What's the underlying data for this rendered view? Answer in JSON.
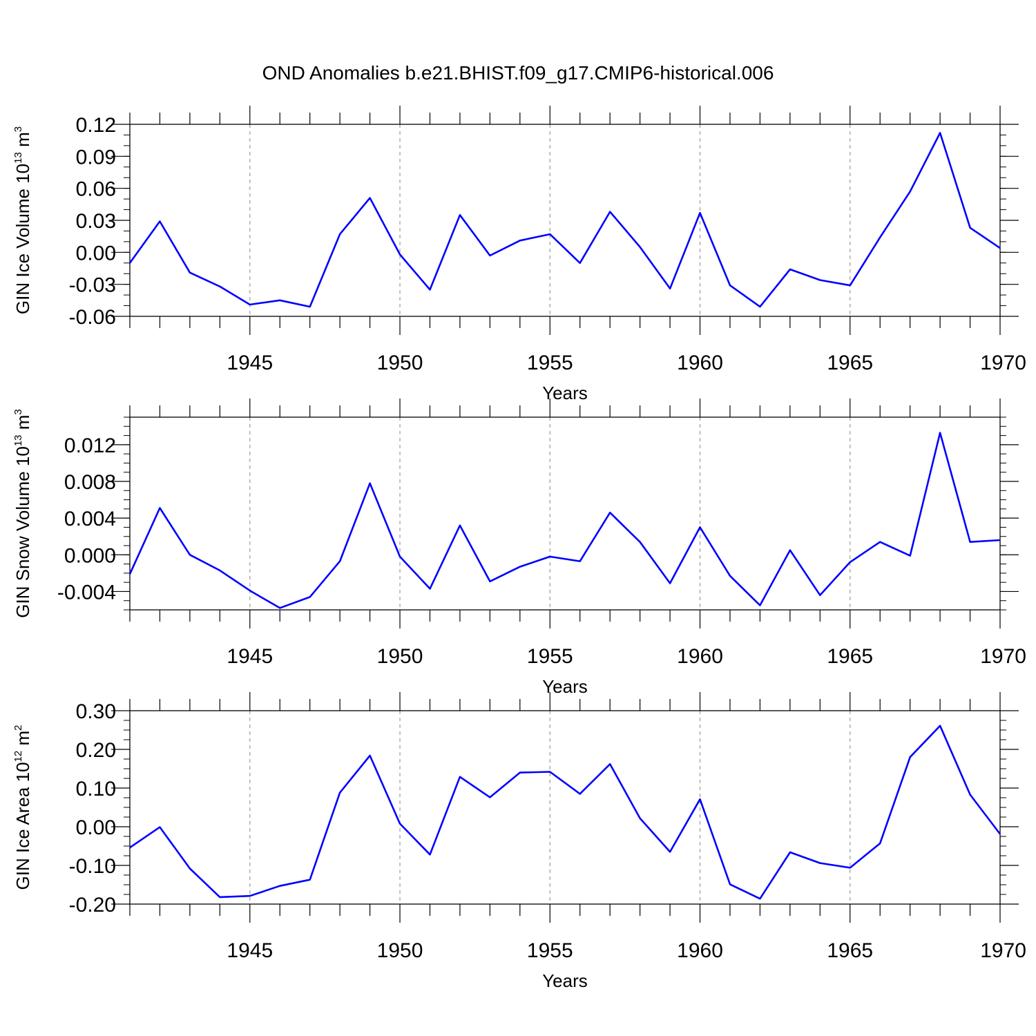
{
  "figure_title": "OND Anomalies b.e21.BHIST.f09_g17.CMIP6-historical.006",
  "line_color": "#0000ff",
  "grid_color": "#9a9a9a",
  "chart_data": [
    {
      "type": "line",
      "ylabel": {
        "text": "GIN Ice Volume 10",
        "exp": "13",
        "unit": " m",
        "unit_exp": "3"
      },
      "xlabel": "Years",
      "xlim": [
        1941,
        1970
      ],
      "ylim": [
        -0.06,
        0.12
      ],
      "yticks": [
        -0.06,
        -0.03,
        0.0,
        0.03,
        0.06,
        0.09,
        0.12
      ],
      "ytick_labels": [
        "-0.06",
        "-0.03",
        "0.00",
        "0.03",
        "0.06",
        "0.09",
        "0.12"
      ],
      "yminor_step": 0.01,
      "xticks": [
        1945,
        1950,
        1955,
        1960,
        1965,
        1970
      ],
      "xtick_labels": [
        "1945",
        "1950",
        "1955",
        "1960",
        "1965",
        "1970"
      ],
      "grid": "vertical dashed at major x ticks",
      "x": [
        1941,
        1942,
        1943,
        1944,
        1945,
        1946,
        1947,
        1948,
        1949,
        1950,
        1951,
        1952,
        1953,
        1954,
        1955,
        1956,
        1957,
        1958,
        1959,
        1960,
        1961,
        1962,
        1963,
        1964,
        1965,
        1966,
        1967,
        1968,
        1969,
        1970
      ],
      "values": [
        -0.01,
        0.029,
        -0.019,
        -0.032,
        -0.049,
        -0.045,
        -0.051,
        0.017,
        0.051,
        -0.002,
        -0.035,
        0.035,
        -0.003,
        0.011,
        0.017,
        -0.01,
        0.038,
        0.005,
        -0.034,
        0.037,
        -0.031,
        -0.051,
        -0.016,
        -0.026,
        -0.031,
        0.014,
        0.057,
        0.112,
        0.023,
        0.004
      ]
    },
    {
      "type": "line",
      "ylabel": {
        "text": "GIN Snow Volume 10",
        "exp": "13",
        "unit": " m",
        "unit_exp": "3"
      },
      "xlabel": "Years",
      "xlim": [
        1941,
        1970
      ],
      "ylim": [
        -0.006,
        0.015
      ],
      "yticks": [
        -0.004,
        0.0,
        0.004,
        0.008,
        0.012
      ],
      "ytick_labels": [
        "-0.004",
        "0.000",
        "0.004",
        "0.008",
        "0.012"
      ],
      "yminor_step": 0.001,
      "xticks": [
        1945,
        1950,
        1955,
        1960,
        1965,
        1970
      ],
      "xtick_labels": [
        "1945",
        "1950",
        "1955",
        "1960",
        "1965",
        "1970"
      ],
      "grid": "vertical dashed at major x ticks",
      "x": [
        1941,
        1942,
        1943,
        1944,
        1945,
        1946,
        1947,
        1948,
        1949,
        1950,
        1951,
        1952,
        1953,
        1954,
        1955,
        1956,
        1957,
        1958,
        1959,
        1960,
        1961,
        1962,
        1963,
        1964,
        1965,
        1966,
        1967,
        1968,
        1969,
        1970
      ],
      "values": [
        -0.0021,
        0.0051,
        0.0,
        -0.0017,
        -0.0039,
        -0.0058,
        -0.0046,
        -0.0007,
        0.0078,
        -0.0002,
        -0.0037,
        0.0032,
        -0.0029,
        -0.0013,
        -0.0002,
        -0.0007,
        0.0046,
        0.0014,
        -0.0031,
        0.003,
        -0.0023,
        -0.0055,
        0.0005,
        -0.0044,
        -0.0008,
        0.0014,
        -0.0001,
        0.0133,
        0.0014,
        0.0016
      ]
    },
    {
      "type": "line",
      "ylabel": {
        "text": "GIN Ice Area 10",
        "exp": "12",
        "unit": " m",
        "unit_exp": "2"
      },
      "xlabel": "Years",
      "xlim": [
        1941,
        1970
      ],
      "ylim": [
        -0.2,
        0.3
      ],
      "yticks": [
        -0.2,
        -0.1,
        0.0,
        0.1,
        0.2,
        0.3
      ],
      "ytick_labels": [
        "-0.20",
        "-0.10",
        "0.00",
        "0.10",
        "0.20",
        "0.30"
      ],
      "yminor_step": 0.025,
      "xticks": [
        1945,
        1950,
        1955,
        1960,
        1965,
        1970
      ],
      "xtick_labels": [
        "1945",
        "1950",
        "1955",
        "1960",
        "1965",
        "1970"
      ],
      "grid": "vertical dashed at major x ticks",
      "x": [
        1941,
        1942,
        1943,
        1944,
        1945,
        1946,
        1947,
        1948,
        1949,
        1950,
        1951,
        1952,
        1953,
        1954,
        1955,
        1956,
        1957,
        1958,
        1959,
        1960,
        1961,
        1962,
        1963,
        1964,
        1965,
        1966,
        1967,
        1968,
        1969,
        1970
      ],
      "values": [
        -0.054,
        -0.001,
        -0.108,
        -0.182,
        -0.179,
        -0.153,
        -0.137,
        0.088,
        0.184,
        0.008,
        -0.072,
        0.129,
        0.076,
        0.14,
        0.142,
        0.085,
        0.162,
        0.022,
        -0.065,
        0.071,
        -0.149,
        -0.186,
        -0.066,
        -0.094,
        -0.106,
        -0.043,
        0.18,
        0.261,
        0.083,
        -0.019
      ]
    }
  ]
}
